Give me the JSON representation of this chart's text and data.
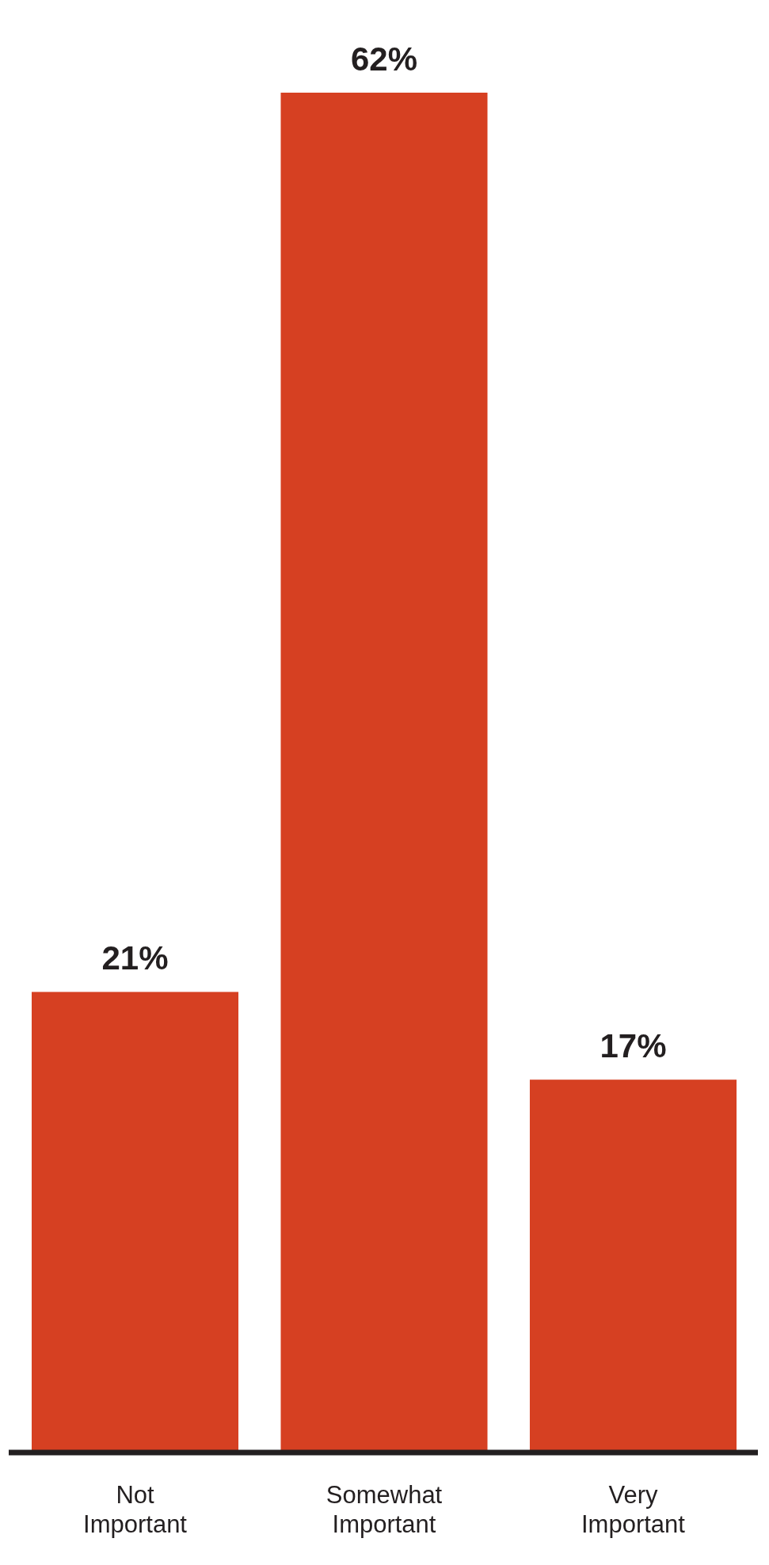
{
  "chart_data": {
    "type": "bar",
    "categories": [
      "Not Important",
      "Somewhat Important",
      "Very Important"
    ],
    "values": [
      21,
      62,
      17
    ],
    "value_labels": [
      "21%",
      "62%",
      "17%"
    ],
    "color": "#d64022",
    "ylim": [
      0,
      62
    ],
    "tick_labels": "x"
  }
}
